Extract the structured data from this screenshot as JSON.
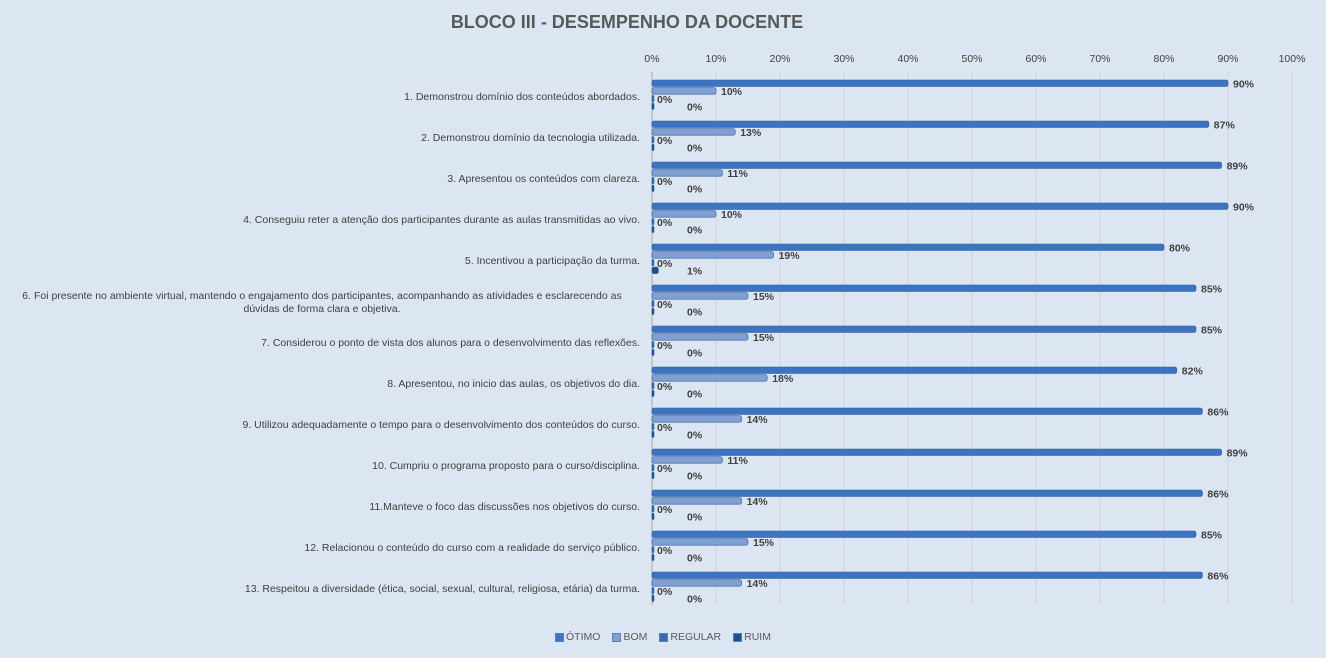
{
  "chart_data": {
    "type": "bar",
    "orientation": "horizontal",
    "title": "BLOCO III - DESEMPENHO  DA DOCENTE",
    "xlabel": "",
    "ylabel": "",
    "xlim": [
      0,
      100
    ],
    "x_ticks": [
      "0%",
      "10%",
      "20%",
      "30%",
      "40%",
      "50%",
      "60%",
      "70%",
      "80%",
      "90%",
      "100%"
    ],
    "grid": true,
    "legend_position": "bottom",
    "categories": [
      "1. Demonstrou domínio dos conteúdos abordados.",
      "2. Demonstrou domínio da tecnologia utilizada.",
      "3. Apresentou os conteúdos com clareza.",
      "4. Conseguiu reter a atenção dos participantes durante as aulas transmitidas ao vivo.",
      "5. Incentivou a participação da turma.",
      "6. Foi presente no ambiente virtual, mantendo o engajamento dos participantes, acompanhando as atividades e esclarecendo as dúvidas de forma clara e objetiva.",
      "7. Considerou o ponto de vista dos alunos para o desenvolvimento das reflexões.",
      "8. Apresentou, no inicio das aulas, os objetivos do dia.",
      "9. Utilizou adequadamente o tempo para o desenvolvimento dos conteúdos do curso.",
      "10. Cumpriu o programa proposto para o curso/disciplina.",
      "11.Manteve o foco das discussões nos objetivos do curso.",
      "12. Relacionou o conteúdo do curso com a realidade do serviço público.",
      "13. Respeitou a diversidade (ética, social, sexual, cultural, religiosa, etária) da turma."
    ],
    "series": [
      {
        "name": "ÓTIMO",
        "color": "#3d74c2",
        "values": [
          90,
          87,
          89,
          90,
          80,
          85,
          85,
          82,
          86,
          89,
          86,
          85,
          86
        ]
      },
      {
        "name": "BOM",
        "color": "#829fd2",
        "values": [
          10,
          13,
          11,
          10,
          19,
          15,
          15,
          18,
          14,
          11,
          14,
          15,
          14
        ]
      },
      {
        "name": "REGULAR",
        "color": "#3a6cb3",
        "values": [
          0,
          0,
          0,
          0,
          0,
          0,
          0,
          0,
          0,
          0,
          0,
          0,
          0
        ]
      },
      {
        "name": "RUIM",
        "color": "#1f4e8c",
        "values": [
          0,
          0,
          0,
          0,
          1,
          0,
          0,
          0,
          0,
          0,
          0,
          0,
          0
        ]
      }
    ],
    "value_suffix": "%"
  }
}
